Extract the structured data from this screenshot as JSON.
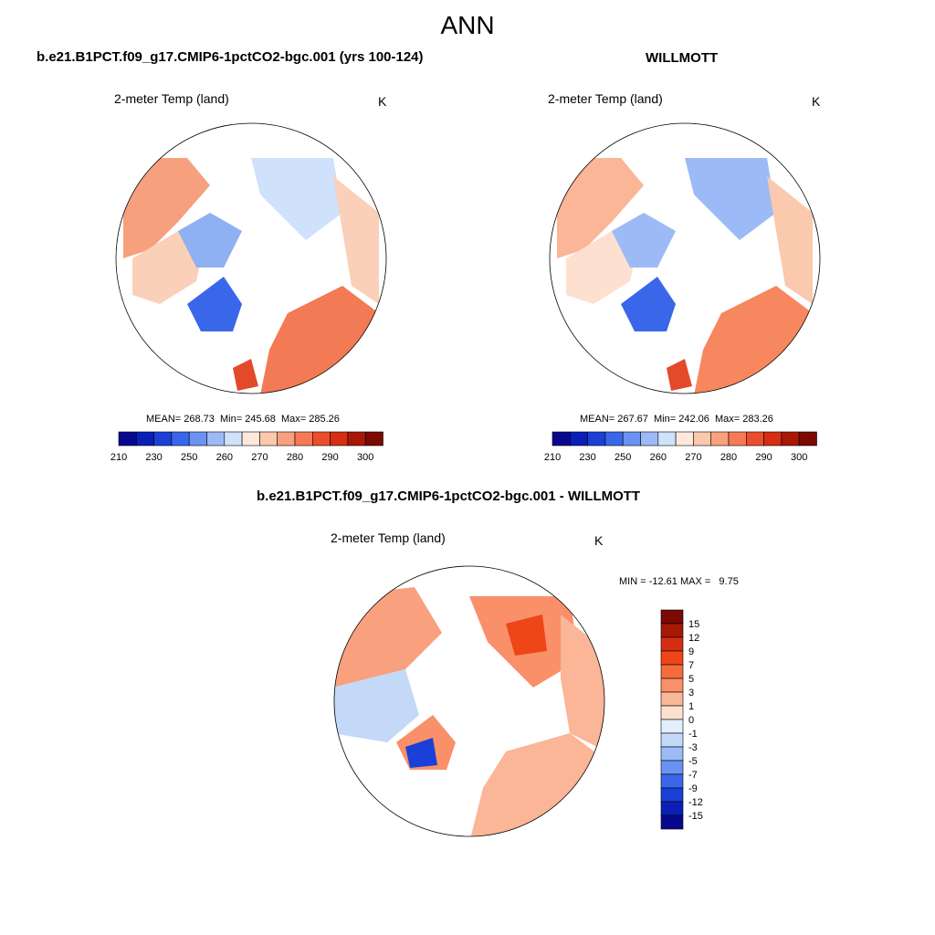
{
  "season": "ANN",
  "panels": {
    "model": {
      "title": "b.e21.B1PCT.f09_g17.CMIP6-1pctCO2-bgc.001 (yrs 100-124)",
      "variable": "2-meter Temp (land)",
      "units": "K",
      "stats": "MEAN= 268.73  Min= 245.68  Max= 285.26"
    },
    "obs": {
      "title": "WILLMOTT",
      "variable": "2-meter Temp (land)",
      "units": "K",
      "stats": "MEAN= 267.67  Min= 242.06  Max= 283.26"
    },
    "diff": {
      "title": "b.e21.B1PCT.f09_g17.CMIP6-1pctCO2-bgc.001 - WILLMOTT",
      "variable": "2-meter Temp (land)",
      "units": "K",
      "stats": "MIN = -12.61 MAX =   9.75"
    }
  },
  "colorbar_abs": {
    "colors": [
      "#08088f",
      "#0a1fb8",
      "#1a40d8",
      "#3a67ea",
      "#6a92f2",
      "#9cbaf6",
      "#cfe1fb",
      "#fde9dc",
      "#fcc9ad",
      "#f9a07e",
      "#f57a55",
      "#ea4f2d",
      "#d52e13",
      "#a81806",
      "#7a0a02"
    ],
    "labels": [
      "210",
      "230",
      "250",
      "260",
      "270",
      "280",
      "290",
      "300"
    ]
  },
  "colorbar_diff": {
    "colors": [
      "#7a0a02",
      "#a81806",
      "#d52e13",
      "#ee4617",
      "#f66c3c",
      "#f9906a",
      "#fbb597",
      "#fde0cf",
      "#e5eefb",
      "#c4d8f8",
      "#9cbaf6",
      "#6a92f2",
      "#3a67ea",
      "#1a40d8",
      "#0a1fb8",
      "#08088f"
    ],
    "labels": [
      "15",
      "12",
      "9",
      "7",
      "5",
      "3",
      "1",
      "0",
      "-1",
      "-3",
      "-5",
      "-7",
      "-9",
      "-12",
      "-15"
    ]
  }
}
